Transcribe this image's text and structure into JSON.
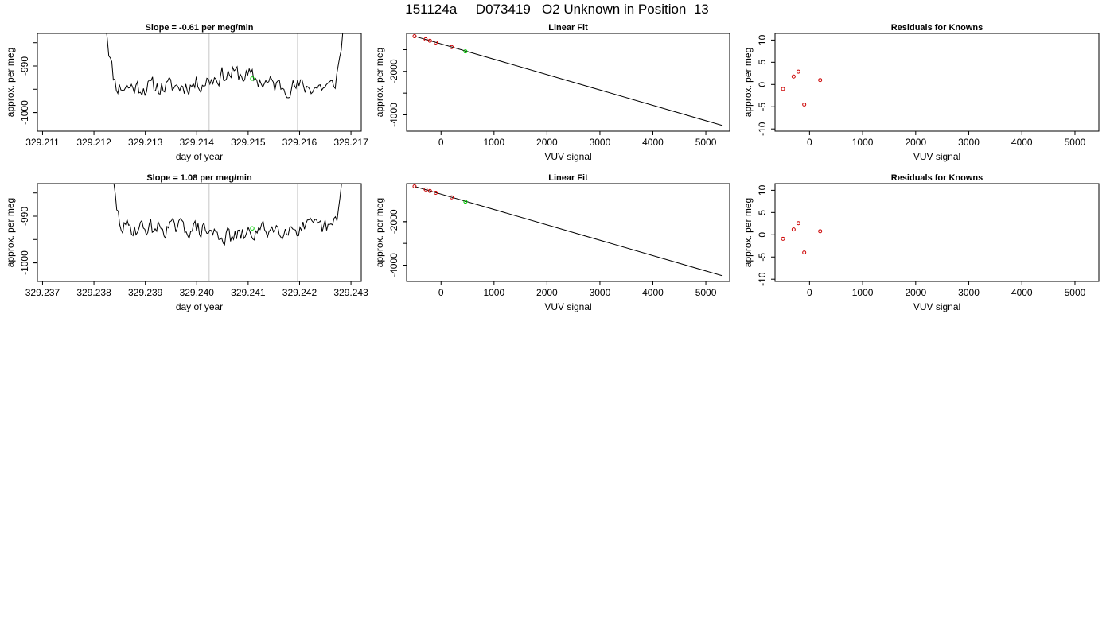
{
  "title": "151124a     D073419   O2 Unknown in Position  13",
  "chart_data": [
    {
      "type": "line",
      "title": "Slope =  -0.61  per meg/min",
      "xlabel": "day of year",
      "ylabel": "approx. per meg",
      "xlim": [
        329.2109,
        329.2172
      ],
      "ylim": [
        -1004,
        -983
      ],
      "xticks": [
        "329.211",
        "329.212",
        "329.213",
        "329.214",
        "329.215",
        "329.216",
        "329.217"
      ],
      "yticks": [
        "-1000",
        "-990"
      ],
      "vlines": [
        329.21424,
        329.21596
      ],
      "series_color": "#000000",
      "marker": {
        "x": 329.21508,
        "y": -992.7,
        "color": "#00cc00"
      },
      "trace": {
        "x_start": 329.2122,
        "x_end": 329.2169,
        "baseline": -994.5,
        "noise": 1.8,
        "seed": 11,
        "bump_center": 329.2147,
        "bump_height": 2.8,
        "bump_width": 0.0006
      }
    },
    {
      "type": "scatter",
      "title": "Linear Fit",
      "xlabel": "VUV signal",
      "ylabel": "approx. per meg",
      "xlim": [
        -650,
        5450
      ],
      "ylim": [
        -4750,
        -250
      ],
      "xticks": [
        "0",
        "1000",
        "2000",
        "3000",
        "4000",
        "5000"
      ],
      "yticks": [
        "-4000",
        "-2000"
      ],
      "fit_line": {
        "x": [
          -500,
          5300
        ],
        "y": [
          -380,
          -4480
        ]
      },
      "points": [
        {
          "x": -500,
          "y": -380,
          "color": "#cc0000"
        },
        {
          "x": -290,
          "y": -520,
          "color": "#cc0000"
        },
        {
          "x": -210,
          "y": -590,
          "color": "#cc0000"
        },
        {
          "x": -100,
          "y": -670,
          "color": "#cc0000"
        },
        {
          "x": 200,
          "y": -880,
          "color": "#cc0000"
        },
        {
          "x": 460,
          "y": -1080,
          "color": "#00cc00"
        }
      ]
    },
    {
      "type": "scatter",
      "title": "Residuals for Knowns",
      "xlabel": "VUV signal",
      "ylabel": "approx. per meg",
      "xlim": [
        -650,
        5450
      ],
      "ylim": [
        -10.5,
        11.5
      ],
      "xticks": [
        "0",
        "1000",
        "2000",
        "3000",
        "4000",
        "5000"
      ],
      "yticks": [
        "-10",
        "-5",
        "0",
        "5",
        "10"
      ],
      "points": [
        {
          "x": -500,
          "y": -1.0,
          "color": "#cc0000"
        },
        {
          "x": -300,
          "y": 1.8,
          "color": "#cc0000"
        },
        {
          "x": -210,
          "y": 2.9,
          "color": "#cc0000"
        },
        {
          "x": -100,
          "y": -4.5,
          "color": "#cc0000"
        },
        {
          "x": 200,
          "y": 1.0,
          "color": "#cc0000"
        }
      ]
    },
    {
      "type": "line",
      "title": "Slope =  1.08  per meg/min",
      "xlabel": "day of year",
      "ylabel": "approx. per meg",
      "xlim": [
        329.2369,
        329.2432
      ],
      "ylim": [
        -1004,
        -983
      ],
      "xticks": [
        "329.237",
        "329.238",
        "329.239",
        "329.240",
        "329.241",
        "329.242",
        "329.243"
      ],
      "yticks": [
        "-1000",
        "-990"
      ],
      "vlines": [
        329.24024,
        329.24196
      ],
      "series_color": "#000000",
      "marker": {
        "x": 329.24108,
        "y": -992.6,
        "color": "#00cc00"
      },
      "trace": {
        "x_start": 329.2383,
        "x_end": 329.2429,
        "baseline": -992.5,
        "noise": 1.7,
        "seed": 29,
        "bump_center": 329.2407,
        "bump_height": -2.0,
        "bump_width": 0.0005
      }
    },
    {
      "type": "scatter",
      "title": "Linear Fit",
      "xlabel": "VUV signal",
      "ylabel": "approx. per meg",
      "xlim": [
        -650,
        5450
      ],
      "ylim": [
        -4750,
        -250
      ],
      "xticks": [
        "0",
        "1000",
        "2000",
        "3000",
        "4000",
        "5000"
      ],
      "yticks": [
        "-4000",
        "-2000"
      ],
      "fit_line": {
        "x": [
          -500,
          5300
        ],
        "y": [
          -380,
          -4480
        ]
      },
      "points": [
        {
          "x": -500,
          "y": -380,
          "color": "#cc0000"
        },
        {
          "x": -290,
          "y": -520,
          "color": "#cc0000"
        },
        {
          "x": -210,
          "y": -590,
          "color": "#cc0000"
        },
        {
          "x": -100,
          "y": -670,
          "color": "#cc0000"
        },
        {
          "x": 200,
          "y": -880,
          "color": "#cc0000"
        },
        {
          "x": 460,
          "y": -1080,
          "color": "#00cc00"
        }
      ]
    },
    {
      "type": "scatter",
      "title": "Residuals for Knowns",
      "xlabel": "VUV signal",
      "ylabel": "approx. per meg",
      "xlim": [
        -650,
        5450
      ],
      "ylim": [
        -10.5,
        11.5
      ],
      "xticks": [
        "0",
        "1000",
        "2000",
        "3000",
        "4000",
        "5000"
      ],
      "yticks": [
        "-10",
        "-5",
        "0",
        "5",
        "10"
      ],
      "points": [
        {
          "x": -500,
          "y": -0.9,
          "color": "#cc0000"
        },
        {
          "x": -300,
          "y": 1.2,
          "color": "#cc0000"
        },
        {
          "x": -210,
          "y": 2.6,
          "color": "#cc0000"
        },
        {
          "x": -100,
          "y": -4.0,
          "color": "#cc0000"
        },
        {
          "x": 200,
          "y": 0.8,
          "color": "#cc0000"
        }
      ]
    }
  ]
}
